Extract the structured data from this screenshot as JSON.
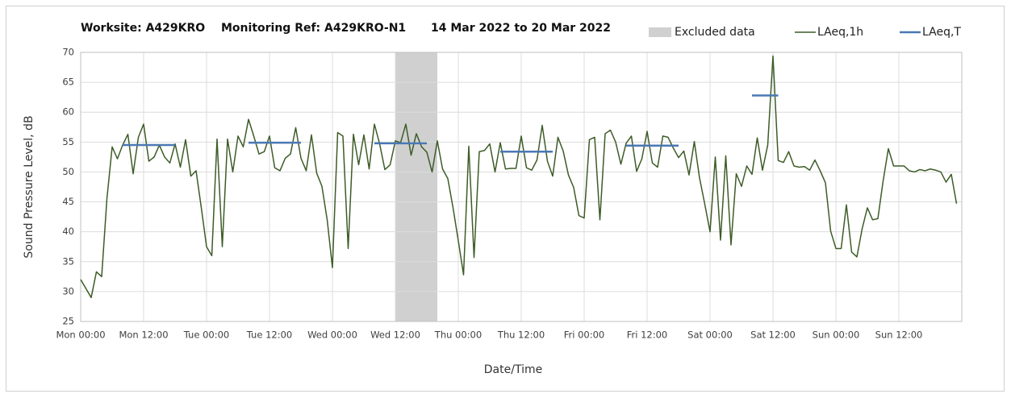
{
  "chart_data": {
    "type": "line",
    "title": [
      "Worksite: A429KRO",
      "Monitoring Ref: A429KRO-N1",
      "14 Mar 2022 to 20 Mar 2022"
    ],
    "x_label": "Date/Time",
    "y_label": "Sound Pressure Level, dB",
    "xlim": [
      0,
      168
    ],
    "ylim": [
      25,
      70
    ],
    "xticks": [
      {
        "value": 0,
        "label": "Mon 00:00"
      },
      {
        "value": 12,
        "label": "Mon 12:00"
      },
      {
        "value": 24,
        "label": "Tue 00:00"
      },
      {
        "value": 36,
        "label": "Tue 12:00"
      },
      {
        "value": 48,
        "label": "Wed 00:00"
      },
      {
        "value": 60,
        "label": "Wed 12:00"
      },
      {
        "value": 72,
        "label": "Thu 00:00"
      },
      {
        "value": 84,
        "label": "Thu 12:00"
      },
      {
        "value": 96,
        "label": "Fri 00:00"
      },
      {
        "value": 108,
        "label": "Fri 12:00"
      },
      {
        "value": 120,
        "label": "Sat 00:00"
      },
      {
        "value": 132,
        "label": "Sat 12:00"
      },
      {
        "value": 144,
        "label": "Sun 00:00"
      },
      {
        "value": 156,
        "label": "Sun 12:00"
      }
    ],
    "yticks": [
      25,
      30,
      35,
      40,
      45,
      50,
      55,
      60,
      65,
      70
    ],
    "grid": true,
    "excluded": {
      "name": "Excluded data",
      "color": "#d0d0d0",
      "x": [
        60,
        68
      ]
    },
    "series": [
      {
        "name": "LAeq,1h",
        "color": "#3d5c27",
        "x": [
          0,
          1,
          2,
          3,
          4,
          5,
          6,
          7,
          8,
          9,
          10,
          11,
          12,
          13,
          14,
          15,
          16,
          17,
          18,
          19,
          20,
          21,
          22,
          23,
          24,
          25,
          26,
          27,
          28,
          29,
          30,
          31,
          32,
          33,
          34,
          35,
          36,
          37,
          38,
          39,
          40,
          41,
          42,
          43,
          44,
          45,
          46,
          47,
          48,
          49,
          50,
          51,
          52,
          53,
          54,
          55,
          56,
          57,
          58,
          59,
          60,
          61,
          62,
          63,
          64,
          65,
          66,
          67,
          68,
          69,
          70,
          71,
          72,
          73,
          74,
          75,
          76,
          77,
          78,
          79,
          80,
          81,
          82,
          83,
          84,
          85,
          86,
          87,
          88,
          89,
          90,
          91,
          92,
          93,
          94,
          95,
          96,
          97,
          98,
          99,
          100,
          101,
          102,
          103,
          104,
          105,
          106,
          107,
          108,
          109,
          110,
          111,
          112,
          113,
          114,
          115,
          116,
          117,
          118,
          119,
          120,
          121,
          122,
          123,
          124,
          125,
          126,
          127,
          128,
          129,
          130,
          131,
          132,
          133,
          134,
          135,
          136,
          137,
          138,
          139,
          140,
          141,
          142,
          143,
          144,
          145,
          146,
          147,
          148,
          149,
          150,
          151,
          152,
          153,
          154,
          155,
          156,
          157,
          158,
          159,
          160,
          161,
          162,
          163,
          164,
          165,
          166,
          167
        ],
        "values": [
          32,
          30.5,
          29,
          33.3,
          32.5,
          45.5,
          54.2,
          52.2,
          54.5,
          56.3,
          49.7,
          55.8,
          58,
          51.8,
          52.5,
          54.5,
          52.5,
          51.5,
          54.7,
          50.8,
          55.4,
          49.3,
          50.2,
          44,
          37.5,
          36,
          55.5,
          37.5,
          55.5,
          50,
          56,
          54.2,
          58.8,
          56,
          53,
          53.4,
          56,
          50.7,
          50.2,
          52.3,
          53,
          57.4,
          52.3,
          50.2,
          56.2,
          49.8,
          47.6,
          42,
          34,
          56.6,
          56,
          37.2,
          56.3,
          51.2,
          56.2,
          50.5,
          58,
          54.7,
          50.4,
          51.2,
          55.2,
          54.9,
          58,
          52.8,
          56.4,
          54.2,
          53.3,
          50,
          55.2,
          50.5,
          48.9,
          44,
          38.5,
          32.8,
          54.3,
          35.7,
          53.4,
          53.6,
          54.7,
          50,
          54.9,
          50.5,
          50.6,
          50.6,
          56,
          50.7,
          50.3,
          52,
          57.8,
          51.8,
          49.3,
          55.8,
          53.5,
          49.5,
          47.4,
          42.7,
          42.3,
          55.4,
          55.8,
          42,
          56.4,
          57,
          55,
          51.3,
          54.8,
          56,
          50.1,
          52.2,
          56.8,
          51.5,
          50.8,
          56,
          55.8,
          54,
          52.4,
          53.5,
          49.5,
          55.1,
          49,
          44.6,
          40,
          52.5,
          38.6,
          52.7,
          37.8,
          49.7,
          47.6,
          51,
          49.6,
          55.7,
          50.3,
          54.5,
          69.4,
          51.9,
          51.6,
          53.4,
          51,
          50.8,
          50.9,
          50.3,
          52,
          50.2,
          48.2,
          40.1,
          37.2,
          37.2,
          44.5,
          36.6,
          35.8,
          40.5,
          44,
          42,
          42.2,
          48.5,
          53.9,
          51,
          51,
          51,
          50.2,
          50,
          50.4,
          50.2,
          50.5,
          50.3,
          50,
          48.3,
          49.6,
          44.7
        ]
      },
      {
        "name": "LAeq,T",
        "color": "#4a78b4",
        "segments": [
          {
            "x": [
              8,
              18
            ],
            "value": 54.5
          },
          {
            "x": [
              32,
              42
            ],
            "value": 54.9
          },
          {
            "x": [
              56,
              66
            ],
            "value": 54.8
          },
          {
            "x": [
              80,
              90
            ],
            "value": 53.4
          },
          {
            "x": [
              104,
              114
            ],
            "value": 54.4
          },
          {
            "x": [
              128,
              133
            ],
            "value": 62.8
          }
        ]
      }
    ]
  }
}
